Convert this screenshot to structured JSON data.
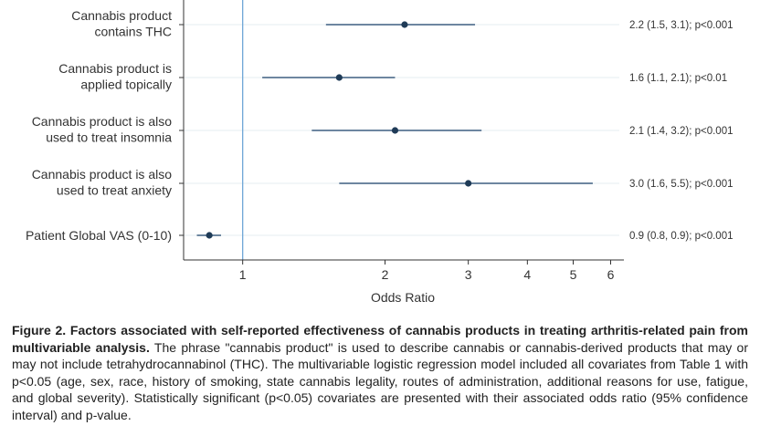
{
  "chart_data": {
    "type": "forest",
    "xlabel": "Odds Ratio",
    "x_scale": "log",
    "xlim": [
      0.75,
      6.4
    ],
    "x_ticks": [
      1,
      2,
      3,
      4,
      5,
      6
    ],
    "reference_line": 1,
    "rows": [
      {
        "label_lines": [
          "Cannabis product",
          "contains THC"
        ],
        "or": 2.2,
        "ci_low": 1.5,
        "ci_high": 3.1,
        "annotation": "2.2 (1.5, 3.1); p<0.001"
      },
      {
        "label_lines": [
          "Cannabis product is",
          "applied topically"
        ],
        "or": 1.6,
        "ci_low": 1.1,
        "ci_high": 2.1,
        "annotation": "1.6 (1.1, 2.1); p<0.01"
      },
      {
        "label_lines": [
          "Cannabis product is also",
          "used to treat insomnia"
        ],
        "or": 2.1,
        "ci_low": 1.4,
        "ci_high": 3.2,
        "annotation": "2.1 (1.4, 3.2); p<0.001"
      },
      {
        "label_lines": [
          "Cannabis product is also",
          "used to treat anxiety"
        ],
        "or": 3.0,
        "ci_low": 1.6,
        "ci_high": 5.5,
        "annotation": "3.0 (1.6, 5.5); p<0.001"
      },
      {
        "label_lines": [
          "Patient Global VAS (0-10)"
        ],
        "or": 0.85,
        "ci_low": 0.8,
        "ci_high": 0.9,
        "annotation": "0.9 (0.8, 0.9); p<0.001"
      }
    ],
    "colors": {
      "point": "#1f3b57",
      "ci_line": "#3d5f80",
      "reference_line": "#6fa6d6",
      "axis": "#333333",
      "gridline": "#e6ecf2"
    }
  },
  "caption": {
    "bold": "Figure 2. Factors associated with self-reported effectiveness of cannabis products in treating arthritis-related pain from multivariable analysis.",
    "text": " The phrase \"cannabis product\" is used to describe cannabis or cannabis-derived products that may or may not include tetrahydrocannabinol (THC). The multivariable logistic regression model included all covariates from Table 1 with p<0.05 (age, sex, race, history of smoking, state cannabis legality, routes of administration, additional reasons for use, fatigue, and global severity). Statistically significant (p<0.05) covariates are presented with their associated odds ratio (95% confidence interval) and p-value."
  }
}
